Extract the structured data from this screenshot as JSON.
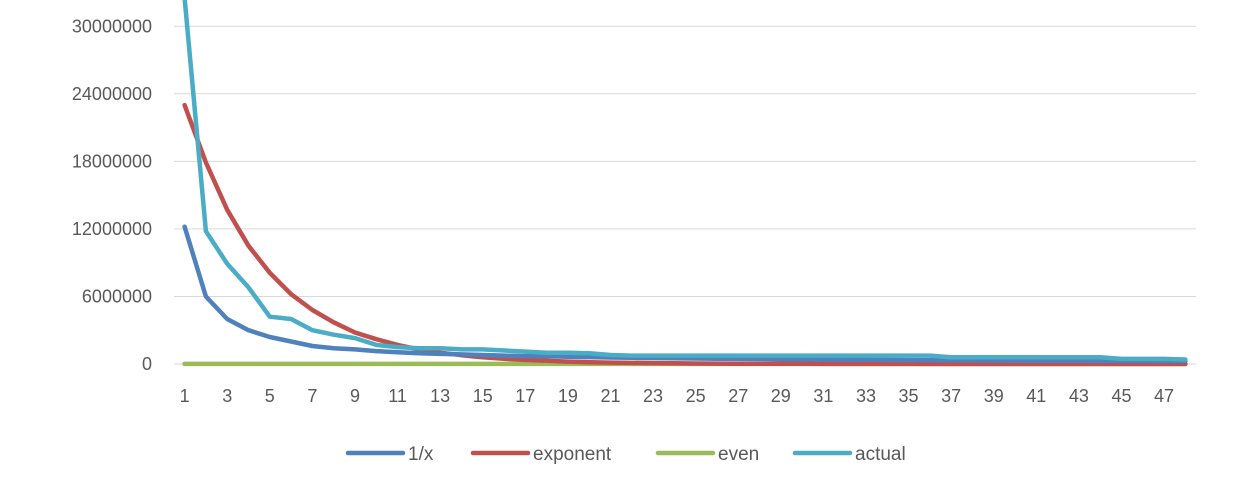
{
  "chart_data": {
    "type": "line",
    "title": "",
    "xlabel": "",
    "ylabel": "",
    "x": [
      1,
      2,
      3,
      4,
      5,
      6,
      7,
      8,
      9,
      10,
      11,
      12,
      13,
      14,
      15,
      16,
      17,
      18,
      19,
      20,
      21,
      22,
      23,
      24,
      25,
      26,
      27,
      28,
      29,
      30,
      31,
      32,
      33,
      34,
      35,
      36,
      37,
      38,
      39,
      40,
      41,
      42,
      43,
      44,
      45,
      46,
      47,
      48
    ],
    "x_tick_labels": [
      "1",
      "3",
      "5",
      "7",
      "9",
      "11",
      "13",
      "15",
      "17",
      "19",
      "21",
      "23",
      "25",
      "27",
      "29",
      "31",
      "33",
      "35",
      "37",
      "39",
      "41",
      "43",
      "45",
      "47"
    ],
    "ylim": [
      0,
      31000000
    ],
    "y_ticks": [
      0,
      6000000,
      12000000,
      18000000,
      24000000,
      30000000
    ],
    "y_tick_labels": [
      "0",
      "6000000",
      "12000000",
      "18000000",
      "24000000",
      "30000000"
    ],
    "grid": true,
    "legend_position": "bottom",
    "series": [
      {
        "name": "1/x",
        "color": "#4f81bd",
        "values": [
          12200000,
          6000000,
          4000000,
          3000000,
          2400000,
          2000000,
          1600000,
          1400000,
          1300000,
          1150000,
          1050000,
          950000,
          900000,
          850000,
          800000,
          750000,
          700000,
          680000,
          650000,
          610000,
          580000,
          550000,
          530000,
          510000,
          490000,
          470000,
          450000,
          440000,
          420000,
          410000,
          390000,
          380000,
          370000,
          360000,
          350000,
          340000,
          330000,
          320000,
          310000,
          300000,
          290000,
          285000,
          280000,
          275000,
          270000,
          265000,
          260000,
          255000
        ]
      },
      {
        "name": "exponent",
        "color": "#c0504d",
        "values": [
          23000000,
          17900000,
          13700000,
          10500000,
          8100000,
          6200000,
          4800000,
          3700000,
          2800000,
          2200000,
          1700000,
          1300000,
          1000000,
          780000,
          600000,
          460000,
          360000,
          280000,
          210000,
          160000,
          125000,
          100000,
          80000,
          60000,
          45000,
          35000,
          30000,
          25000,
          20000,
          15000,
          12000,
          10000,
          8000,
          6000,
          5000,
          4000,
          3000,
          2500,
          2000,
          1500,
          1200,
          1000,
          800,
          600,
          500,
          400,
          300,
          250
        ]
      },
      {
        "name": "even",
        "color": "#9bbb59",
        "values": [
          10000,
          10000,
          10000,
          10000,
          10000,
          10000,
          10000,
          10000,
          10000,
          10000,
          10000,
          10000,
          10000,
          10000,
          10000,
          10000,
          10000,
          10000,
          10000,
          10000,
          10000,
          10000,
          10000,
          10000,
          10000,
          10000,
          10000,
          10000,
          10000,
          10000,
          10000,
          10000,
          10000,
          10000,
          10000,
          10000,
          10000,
          10000,
          10000,
          10000,
          10000,
          10000,
          10000,
          10000,
          10000,
          10000,
          10000,
          10000
        ]
      },
      {
        "name": "actual",
        "color": "#4bacc6",
        "values": [
          32500000,
          11800000,
          8900000,
          6800000,
          4200000,
          4000000,
          3000000,
          2600000,
          2300000,
          1700000,
          1500000,
          1400000,
          1400000,
          1300000,
          1300000,
          1200000,
          1100000,
          1000000,
          1000000,
          950000,
          800000,
          750000,
          750000,
          750000,
          750000,
          750000,
          750000,
          750000,
          750000,
          750000,
          750000,
          750000,
          750000,
          750000,
          750000,
          750000,
          600000,
          600000,
          600000,
          600000,
          600000,
          600000,
          600000,
          600000,
          450000,
          450000,
          450000,
          400000
        ]
      }
    ]
  }
}
